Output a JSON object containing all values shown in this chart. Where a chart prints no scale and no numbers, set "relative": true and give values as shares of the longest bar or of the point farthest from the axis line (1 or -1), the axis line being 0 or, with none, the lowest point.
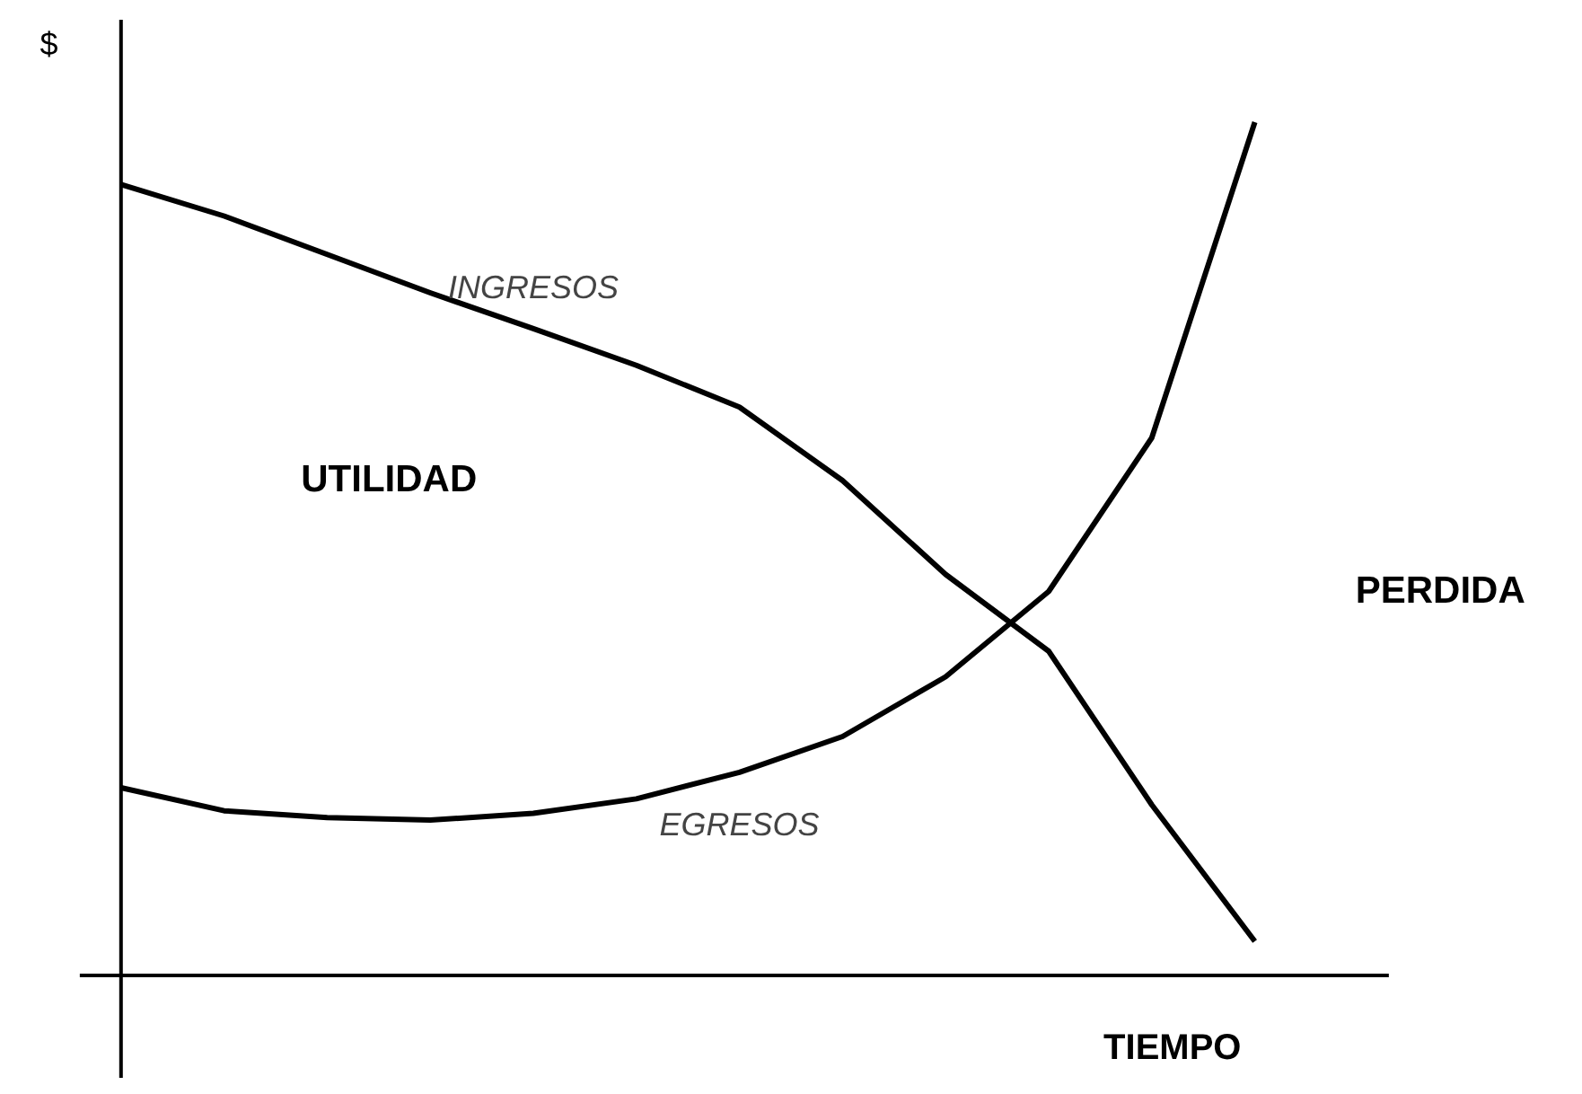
{
  "chart_data": {
    "type": "line",
    "relative": true,
    "xlabel": "TIEMPO",
    "ylabel": "$",
    "categories": [
      null,
      null,
      null,
      null,
      null,
      null,
      null,
      null,
      null,
      null,
      null,
      null
    ],
    "series": [
      {
        "name": "INGRESOS",
        "color": "#000000",
        "values": [
          0.927,
          0.89,
          0.845,
          0.8,
          0.758,
          0.715,
          0.666,
          0.58,
          0.47,
          0.38,
          0.2,
          0.04
        ]
      },
      {
        "name": "EGRESOS",
        "color": "#000000",
        "values": [
          0.22,
          0.193,
          0.185,
          0.182,
          0.19,
          0.207,
          0.238,
          0.28,
          0.35,
          0.45,
          0.63,
          1.0
        ]
      }
    ],
    "annotations": [
      "UTILIDAD",
      "PERDIDA"
    ]
  }
}
